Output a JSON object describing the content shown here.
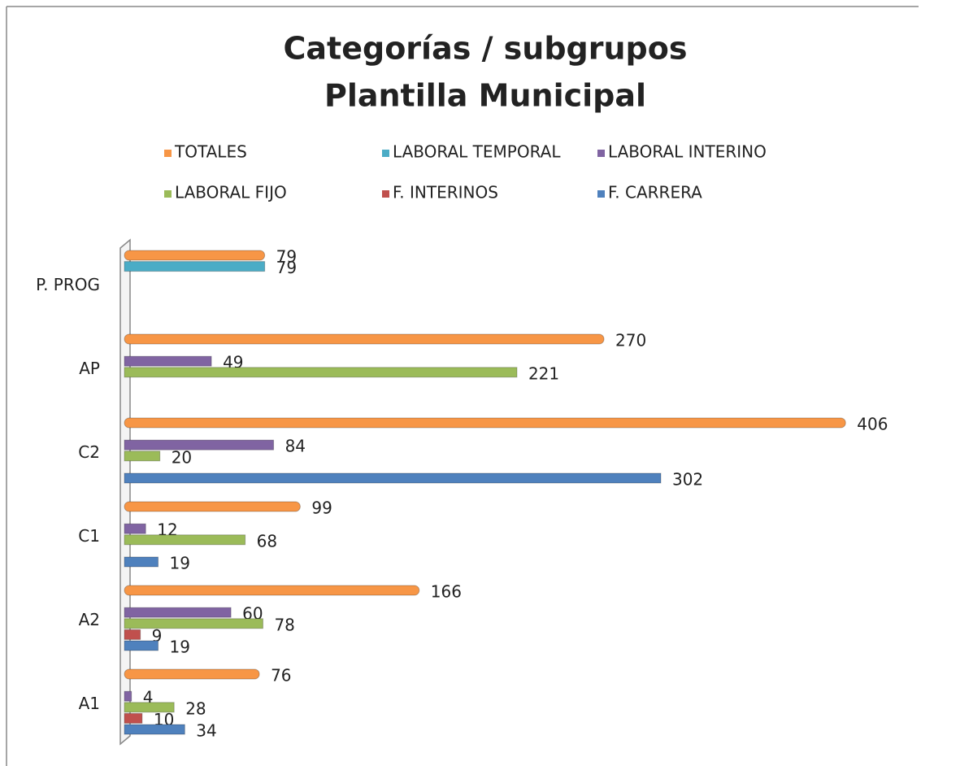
{
  "chart_data": {
    "type": "hbar",
    "title": [
      "Categorías / subgrupos",
      "Plantilla Municipal"
    ],
    "categories": [
      "A1",
      "A2",
      "C1",
      "C2",
      "AP",
      "P. PROG"
    ],
    "series": [
      {
        "name": "TOTALES",
        "color": "#f79646",
        "values": [
          76,
          166,
          99,
          406,
          270,
          79
        ]
      },
      {
        "name": "LABORAL TEMPORAL",
        "color": "#4bacc6",
        "values": [
          null,
          null,
          null,
          null,
          null,
          79
        ]
      },
      {
        "name": "LABORAL INTERINO",
        "color": "#8064a2",
        "values": [
          4,
          60,
          12,
          84,
          49,
          null
        ]
      },
      {
        "name": "LABORAL FIJO",
        "color": "#9bbb59",
        "values": [
          28,
          78,
          68,
          20,
          221,
          null
        ]
      },
      {
        "name": "F. INTERINOS",
        "color": "#c0504d",
        "values": [
          10,
          9,
          null,
          null,
          null,
          null
        ]
      },
      {
        "name": "F. CARRERA",
        "color": "#4f81bd",
        "values": [
          34,
          19,
          19,
          302,
          null,
          null
        ]
      }
    ],
    "xlim": [
      0,
      410
    ],
    "legend": "top"
  }
}
